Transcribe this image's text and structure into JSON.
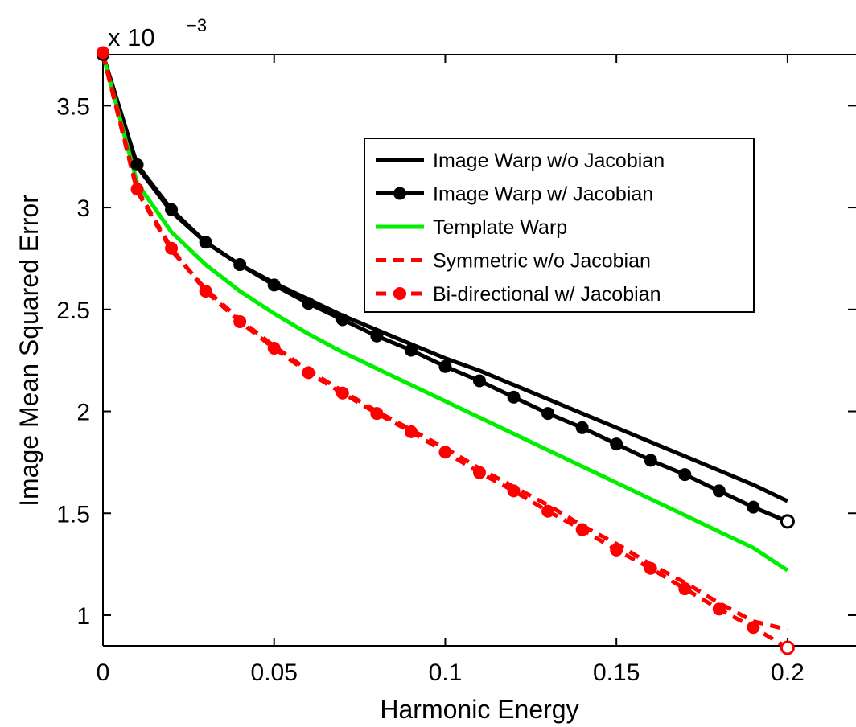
{
  "chart_data": {
    "type": "line",
    "xlabel": "Harmonic Energy",
    "ylabel": "Image Mean Squared Error",
    "y_multiplier_base": "x 10",
    "y_multiplier_exponent": "−3",
    "xlim": [
      0,
      0.22
    ],
    "ylim": [
      0.00085,
      0.00375
    ],
    "grid": false,
    "legend_position": "top-right",
    "x_ticks": [
      0,
      0.05,
      0.1,
      0.15,
      0.2
    ],
    "x_tick_labels": [
      "0",
      "0.05",
      "0.1",
      "0.15",
      "0.2"
    ],
    "y_ticks": [
      0.001,
      0.0015,
      0.002,
      0.0025,
      0.003,
      0.0035
    ],
    "y_tick_labels": [
      "1",
      "1.5",
      "2",
      "2.5",
      "3",
      "3.5"
    ],
    "x": [
      0,
      0.01,
      0.02,
      0.03,
      0.04,
      0.05,
      0.06,
      0.07,
      0.08,
      0.09,
      0.1,
      0.11,
      0.12,
      0.13,
      0.14,
      0.15,
      0.16,
      0.17,
      0.18,
      0.19,
      0.2
    ],
    "series": [
      {
        "name": "Image Warp w/o Jacobian",
        "color": "#000000",
        "dashed": false,
        "marker": "none",
        "values": [
          0.00375,
          0.0032,
          0.00298,
          0.00283,
          0.00272,
          0.00263,
          0.00255,
          0.00247,
          0.0024,
          0.00233,
          0.00226,
          0.0022,
          0.00213,
          0.00206,
          0.00199,
          0.00192,
          0.00185,
          0.00178,
          0.00171,
          0.00164,
          0.00156
        ]
      },
      {
        "name": "Image Warp w/ Jacobian",
        "color": "#000000",
        "dashed": false,
        "marker": "filled-circle",
        "values": [
          0.00375,
          0.00321,
          0.00299,
          0.00283,
          0.00272,
          0.00262,
          0.00253,
          0.00245,
          0.00237,
          0.0023,
          0.00222,
          0.00215,
          0.00207,
          0.00199,
          0.00192,
          0.00184,
          0.00176,
          0.00169,
          0.00161,
          0.00153,
          0.00146
        ]
      },
      {
        "name": "Template Warp",
        "color": "#00ee00",
        "dashed": false,
        "marker": "none",
        "values": [
          0.00375,
          0.00312,
          0.00288,
          0.00272,
          0.00259,
          0.00248,
          0.00238,
          0.00229,
          0.00221,
          0.00213,
          0.00205,
          0.00197,
          0.00189,
          0.00181,
          0.00173,
          0.00165,
          0.00157,
          0.00149,
          0.00141,
          0.00133,
          0.00122
        ]
      },
      {
        "name": "Symmetric w/o Jacobian",
        "color": "#ff0000",
        "dashed": true,
        "marker": "none",
        "values": [
          0.00375,
          0.00308,
          0.00279,
          0.0026,
          0.00245,
          0.00232,
          0.0022,
          0.0021,
          0.002,
          0.00191,
          0.00182,
          0.00172,
          0.00163,
          0.00154,
          0.00144,
          0.00135,
          0.00125,
          0.00116,
          0.00106,
          0.00097,
          0.00093
        ]
      },
      {
        "name": "Bi-directional w/ Jacobian",
        "color": "#ff0000",
        "dashed": true,
        "marker": "filled-circle",
        "values": [
          0.00376,
          0.00309,
          0.0028,
          0.00259,
          0.00244,
          0.00231,
          0.00219,
          0.00209,
          0.00199,
          0.0019,
          0.0018,
          0.0017,
          0.00161,
          0.00151,
          0.00142,
          0.00132,
          0.00123,
          0.00113,
          0.00103,
          0.00094,
          0.00084
        ]
      }
    ]
  }
}
